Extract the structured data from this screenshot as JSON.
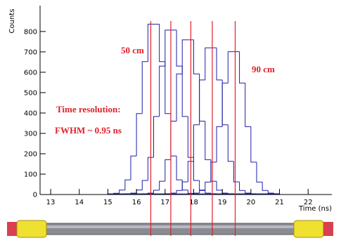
{
  "chart_data": {
    "type": "histogram",
    "xlabel": "Time (ns)",
    "ylabel": "Counts",
    "xlim": [
      12.63,
      22.83
    ],
    "ylim": [
      0,
      927
    ],
    "xticks": [
      13,
      14,
      15,
      16,
      17,
      18,
      19,
      20,
      21,
      22
    ],
    "yticks": [
      0,
      100,
      200,
      300,
      400,
      500,
      600,
      700,
      800
    ],
    "bins": [
      15.0,
      15.2,
      15.4,
      15.6,
      15.8,
      16.0,
      16.2,
      16.4,
      16.6,
      16.8,
      17.0,
      17.2,
      17.4,
      17.6,
      17.8,
      18.0,
      18.2,
      18.4,
      18.6,
      18.8,
      19.0,
      19.2,
      19.4,
      19.6,
      19.8,
      20.0,
      20.2,
      20.4,
      20.6,
      20.8,
      21.0
    ],
    "series": [
      {
        "color": "#1e1ea8",
        "values": [
          3,
          6,
          22,
          72,
          189,
          397,
          652,
          836,
          836,
          652,
          397,
          189,
          72,
          22,
          6,
          3,
          3,
          3,
          3,
          3,
          3,
          3,
          3,
          3,
          3,
          3,
          3,
          3,
          3,
          3
        ]
      },
      {
        "color": "#1e1ea8",
        "values": [
          3,
          3,
          3,
          4,
          7,
          22,
          69,
          182,
          383,
          630,
          807,
          807,
          630,
          383,
          182,
          69,
          22,
          7,
          4,
          3,
          3,
          3,
          3,
          3,
          3,
          3,
          3,
          3,
          3,
          3
        ]
      },
      {
        "color": "#1e1ea8",
        "values": [
          3,
          3,
          3,
          3,
          3,
          3,
          4,
          7,
          21,
          65,
          171,
          360,
          592,
          759,
          759,
          592,
          360,
          171,
          65,
          21,
          7,
          4,
          3,
          3,
          3,
          3,
          3,
          3,
          3,
          3
        ]
      },
      {
        "color": "#1e1ea8",
        "values": [
          3,
          3,
          3,
          3,
          3,
          3,
          3,
          3,
          3,
          3,
          4,
          7,
          20,
          62,
          163,
          342,
          562,
          720,
          720,
          562,
          342,
          163,
          62,
          20,
          7,
          4,
          3,
          3,
          3,
          3
        ]
      },
      {
        "color": "#1e1ea8",
        "values": [
          3,
          3,
          3,
          3,
          3,
          3,
          3,
          3,
          3,
          3,
          3,
          3,
          3,
          3,
          4,
          7,
          20,
          61,
          159,
          333,
          547,
          701,
          701,
          547,
          333,
          159,
          61,
          20,
          7,
          4
        ]
      }
    ],
    "markers": [
      16.5,
      17.2,
      17.9,
      18.65,
      19.45
    ],
    "marker_color": "#e0202a",
    "annotations": [
      "50 cm",
      "90 cm",
      "Time resolution:",
      "FWHM ~ 0.95 ns"
    ]
  }
}
